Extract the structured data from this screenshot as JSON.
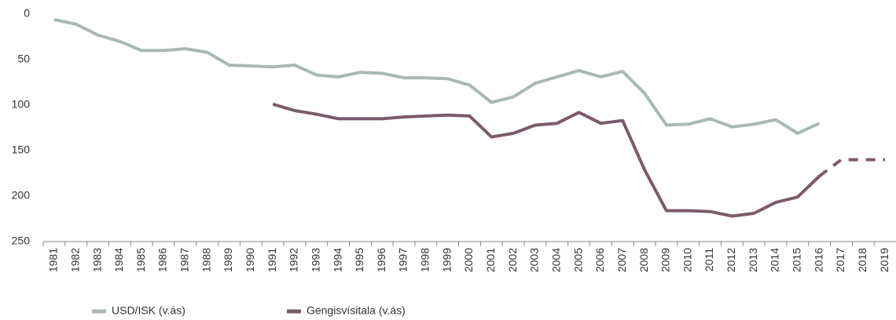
{
  "chart_data": {
    "type": "line",
    "categories": [
      "1981",
      "1982",
      "1983",
      "1984",
      "1985",
      "1986",
      "1987",
      "1988",
      "1989",
      "1990",
      "1991",
      "1992",
      "1993",
      "1994",
      "1995",
      "1996",
      "1997",
      "1998",
      "1999",
      "2000",
      "2001",
      "2002",
      "2003",
      "2004",
      "2005",
      "2006",
      "2007",
      "2008",
      "2009",
      "2010",
      "2011",
      "2012",
      "2013",
      "2014",
      "2015",
      "2016",
      "2017",
      "2018",
      "2019"
    ],
    "series": [
      {
        "name": "USD/ISK (v.ás)",
        "color": "#a9b9b1",
        "values": [
          6,
          11,
          23,
          30,
          40,
          40,
          38,
          42,
          56,
          57,
          58,
          56,
          67,
          69,
          64,
          65,
          70,
          70,
          71,
          78,
          97,
          91,
          76,
          69,
          62,
          69,
          63,
          87,
          122,
          121,
          115,
          124,
          121,
          116,
          131,
          120,
          null,
          null,
          null
        ]
      },
      {
        "name": "Gengisvísitala (v.ás)",
        "color": "#7b5b6b",
        "dashed_from": "2016",
        "values": [
          null,
          null,
          null,
          null,
          null,
          null,
          null,
          null,
          null,
          null,
          99,
          106,
          110,
          115,
          115,
          115,
          113,
          112,
          111,
          112,
          135,
          131,
          122,
          120,
          108,
          120,
          117,
          171,
          216,
          216,
          217,
          222,
          219,
          207,
          201,
          178,
          160,
          160,
          160
        ]
      }
    ],
    "ylim": [
      0,
      250
    ],
    "y_inverted": true,
    "yticks": [
      0,
      50,
      100,
      150,
      200,
      250
    ],
    "grid": false,
    "legend": "bottom-left"
  }
}
